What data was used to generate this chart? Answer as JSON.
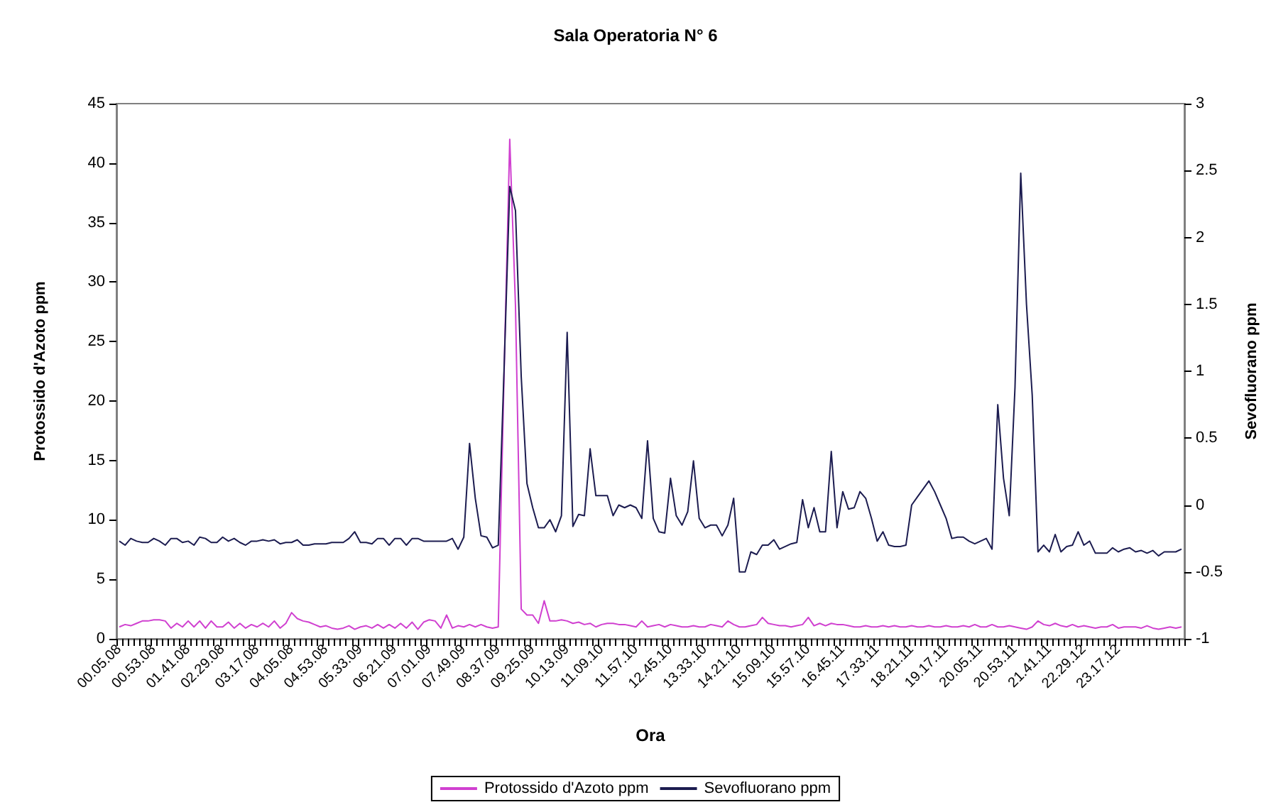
{
  "chart_data": {
    "type": "line",
    "title": "Sala Operatoria N° 6",
    "xlabel": "Ora",
    "ylabel": "Protossido d'Azoto ppm",
    "y2label": "Sevofluorano ppm",
    "categories": [
      "00.05.08",
      null,
      null,
      null,
      null,
      null,
      "00.53.08",
      null,
      null,
      null,
      null,
      null,
      "01.41.08",
      null,
      null,
      null,
      null,
      null,
      "02.29.08",
      null,
      null,
      null,
      null,
      null,
      "03.17.08",
      null,
      null,
      null,
      null,
      null,
      "04.05.08",
      null,
      null,
      null,
      null,
      null,
      "04.53.08",
      null,
      null,
      null,
      null,
      null,
      "05.33.09",
      null,
      null,
      null,
      null,
      null,
      "06.21.09",
      null,
      null,
      null,
      null,
      null,
      "07.01.09",
      null,
      null,
      null,
      null,
      null,
      "07.49.09",
      null,
      null,
      null,
      null,
      null,
      "08.37.09",
      null,
      null,
      null,
      null,
      null,
      "09.25.09",
      null,
      null,
      null,
      null,
      null,
      "10.13.09",
      null,
      null,
      null,
      null,
      null,
      "11.09.10",
      null,
      null,
      null,
      null,
      null,
      "11.57.10",
      null,
      null,
      null,
      null,
      null,
      "12.45.10",
      null,
      null,
      null,
      null,
      null,
      "13.33.10",
      null,
      null,
      null,
      null,
      null,
      "14.21.10",
      null,
      null,
      null,
      null,
      null,
      "15.09.10",
      null,
      null,
      null,
      null,
      null,
      "15.57.10",
      null,
      null,
      null,
      null,
      null,
      "16.45.11",
      null,
      null,
      null,
      null,
      null,
      "17.33.11",
      null,
      null,
      null,
      null,
      null,
      "18.21.11",
      null,
      null,
      null,
      null,
      null,
      "19.17.11",
      null,
      null,
      null,
      null,
      null,
      "20.05.11",
      null,
      null,
      null,
      null,
      null,
      "20.53.11",
      null,
      null,
      null,
      null,
      null,
      "21.41.11",
      null,
      null,
      null,
      null,
      null,
      "22.29.12",
      null,
      null,
      null,
      null,
      null,
      "23.17.12",
      null,
      null,
      null,
      null,
      null,
      null,
      null,
      null,
      null,
      null,
      null
    ],
    "series": [
      {
        "name": "Protossido d'Azoto ppm",
        "color": "#d040d0",
        "values": [
          1.0,
          1.2,
          1.1,
          1.3,
          1.5,
          1.5,
          1.6,
          1.6,
          1.5,
          0.9,
          1.3,
          1.0,
          1.5,
          1.0,
          1.5,
          0.9,
          1.5,
          1.0,
          1.0,
          1.4,
          0.9,
          1.3,
          0.9,
          1.2,
          1.0,
          1.3,
          1.0,
          1.5,
          0.9,
          1.3,
          2.2,
          1.7,
          1.5,
          1.4,
          1.2,
          1.0,
          1.1,
          0.9,
          0.8,
          0.9,
          1.1,
          0.8,
          1.0,
          1.1,
          0.9,
          1.2,
          0.9,
          1.2,
          0.9,
          1.3,
          0.9,
          1.4,
          0.8,
          1.4,
          1.6,
          1.5,
          0.9,
          2.0,
          0.9,
          1.1,
          1.0,
          1.2,
          1.0,
          1.2,
          1.0,
          0.9,
          1.0,
          22,
          42,
          28,
          2.5,
          2.0,
          2.0,
          1.3,
          3.2,
          1.5,
          1.5,
          1.6,
          1.5,
          1.3,
          1.4,
          1.2,
          1.3,
          1.0,
          1.2,
          1.3,
          1.3,
          1.2,
          1.2,
          1.1,
          1.0,
          1.5,
          1.0,
          1.1,
          1.2,
          1.0,
          1.2,
          1.1,
          1.0,
          1.0,
          1.1,
          1.0,
          1.0,
          1.2,
          1.1,
          1.0,
          1.5,
          1.2,
          1.0,
          1.0,
          1.1,
          1.2,
          1.8,
          1.3,
          1.2,
          1.1,
          1.1,
          1.0,
          1.1,
          1.2,
          1.8,
          1.1,
          1.3,
          1.1,
          1.3,
          1.2,
          1.2,
          1.1,
          1.0,
          1.0,
          1.1,
          1.0,
          1.0,
          1.1,
          1.0,
          1.1,
          1.0,
          1.0,
          1.1,
          1.0,
          1.0,
          1.1,
          1.0,
          1.0,
          1.1,
          1.0,
          1.0,
          1.1,
          1.0,
          1.2,
          1.0,
          1.0,
          1.2,
          1.0,
          1.0,
          1.1,
          1.0,
          0.9,
          0.8,
          1.0,
          1.5,
          1.2,
          1.1,
          1.3,
          1.1,
          1.0,
          1.2,
          1.0,
          1.1,
          1.0,
          0.9,
          1.0,
          1.0,
          1.2,
          0.9,
          1.0,
          1.0,
          1.0,
          0.9,
          1.1,
          0.9,
          0.8,
          0.9,
          1.0,
          0.9,
          1.0
        ]
      },
      {
        "name": "Sevofluorano ppm",
        "color": "#1c1c50",
        "axis": "y2",
        "values": [
          -0.27,
          -0.3,
          -0.25,
          -0.27,
          -0.28,
          -0.28,
          -0.25,
          -0.27,
          -0.3,
          -0.25,
          -0.25,
          -0.28,
          -0.27,
          -0.3,
          -0.24,
          -0.25,
          -0.28,
          -0.28,
          -0.24,
          -0.27,
          -0.25,
          -0.28,
          -0.3,
          -0.27,
          -0.27,
          -0.26,
          -0.27,
          -0.26,
          -0.29,
          -0.28,
          -0.28,
          -0.26,
          -0.3,
          -0.3,
          -0.29,
          -0.29,
          -0.29,
          -0.28,
          -0.28,
          -0.28,
          -0.25,
          -0.2,
          -0.28,
          -0.28,
          -0.29,
          -0.25,
          -0.25,
          -0.3,
          -0.25,
          -0.25,
          -0.3,
          -0.25,
          -0.25,
          -0.27,
          -0.27,
          -0.27,
          -0.27,
          -0.27,
          -0.25,
          -0.33,
          -0.24,
          0.46,
          0.05,
          -0.23,
          -0.24,
          -0.32,
          -0.3,
          1.0,
          2.38,
          2.2,
          0.96,
          0.16,
          -0.02,
          -0.17,
          -0.17,
          -0.11,
          -0.2,
          -0.08,
          1.29,
          -0.16,
          -0.07,
          -0.08,
          0.42,
          0.07,
          0.07,
          0.07,
          -0.08,
          0.0,
          -0.02,
          0.0,
          -0.02,
          -0.1,
          0.48,
          -0.1,
          -0.2,
          -0.21,
          0.2,
          -0.08,
          -0.15,
          -0.05,
          0.33,
          -0.1,
          -0.17,
          -0.15,
          -0.15,
          -0.23,
          -0.15,
          0.05,
          -0.5,
          -0.5,
          -0.35,
          -0.37,
          -0.3,
          -0.3,
          -0.26,
          -0.33,
          -0.31,
          -0.29,
          -0.28,
          0.04,
          -0.17,
          -0.02,
          -0.2,
          -0.2,
          0.4,
          -0.17,
          0.1,
          -0.03,
          -0.02,
          0.1,
          0.05,
          -0.1,
          -0.27,
          -0.2,
          -0.3,
          -0.31,
          -0.31,
          -0.3,
          0.0,
          0.06,
          0.12,
          0.18,
          0.1,
          0.0,
          -0.1,
          -0.25,
          -0.24,
          -0.24,
          -0.27,
          -0.29,
          -0.27,
          -0.25,
          -0.33,
          0.75,
          0.2,
          -0.08,
          0.88,
          2.48,
          1.5,
          0.82,
          -0.35,
          -0.3,
          -0.35,
          -0.22,
          -0.35,
          -0.31,
          -0.3,
          -0.2,
          -0.3,
          -0.27,
          -0.36,
          -0.36,
          -0.36,
          -0.32,
          -0.35,
          -0.33,
          -0.32,
          -0.35,
          -0.34,
          -0.36,
          -0.34,
          -0.38,
          -0.35,
          -0.35,
          -0.35,
          -0.33
        ]
      }
    ],
    "ylim": [
      0,
      45
    ],
    "yticks": [
      0,
      5,
      10,
      15,
      20,
      25,
      30,
      35,
      40,
      45
    ],
    "y2lim": [
      -1,
      3
    ],
    "y2ticks": [
      -1,
      -0.5,
      0,
      0.5,
      1,
      1.5,
      2,
      2.5,
      3
    ],
    "legend": "bottom",
    "grid": false,
    "marker": "none",
    "line_style": "solid"
  }
}
